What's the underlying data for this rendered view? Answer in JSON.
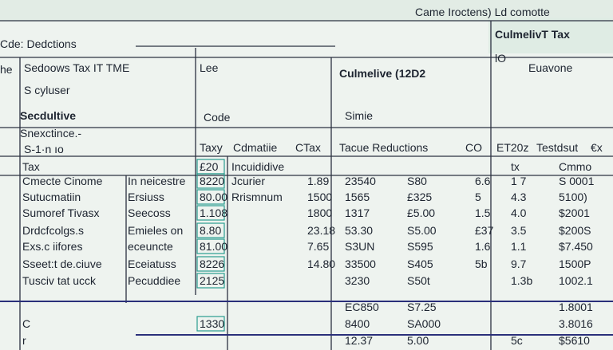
{
  "header": {
    "top_note": "Came Iroctens) Ld comotte",
    "title": "Cde: Dedctions",
    "right_title": "CulmelivT Tax"
  },
  "panels": {
    "left": [
      "he",
      "Sedoows Tax IT TME",
      "S cyluser",
      "Secdultive",
      "Snexctince.-",
      "S-1·n ıo"
    ],
    "middle": [
      "Lee",
      "Code"
    ],
    "center": [
      "Culmelive (12D2",
      "Simie"
    ],
    "right": [
      "lO",
      "Euavone"
    ]
  },
  "table": {
    "headers": [
      "Taxy",
      "Cdmatiie",
      "CTax",
      "Tacue Reductions",
      "CO",
      "ET20z",
      "Testdsut",
      "€x"
    ],
    "columns": [
      {
        "cells": [
          "Tax",
          "Cmecte Cinome",
          "Sutucmatiin",
          "Sumoref Tivasx",
          "Drdcfcolgs.s",
          "Exs.c iifores",
          "Sseet:t de.ciuve",
          "Tusciv tat ucck",
          null,
          "C",
          "r"
        ]
      },
      {
        "cells": [
          null,
          "In neicestre",
          "Ersiuss",
          "Seecoss",
          "Emieles on",
          "eceuncte",
          "Eceiatuss",
          "Pecuddiee",
          null,
          null,
          null
        ]
      },
      {
        "cells": [
          "£20",
          "8220",
          "80.00",
          "1.108",
          "8.80",
          "81.00",
          "8226",
          "2125",
          null,
          "1330",
          null
        ]
      },
      {
        "cells": [
          "Incuididive",
          "Jcurier",
          "Rrismnum",
          null,
          null,
          null,
          null,
          null,
          null,
          null,
          null
        ]
      },
      {
        "cells": [
          null,
          "1.89",
          "1500",
          "1800",
          "23.18",
          "7.65",
          "14.80",
          null,
          null,
          null,
          null
        ]
      },
      {
        "cells": [
          null,
          "23540",
          "1565",
          "1317",
          "53.30",
          "S3UN",
          "33500",
          "3230",
          "EC850",
          "8400",
          "12.37"
        ]
      },
      {
        "cells": [
          null,
          "S80",
          "£325",
          "£5.00",
          "S5.00",
          "S595",
          "S405",
          "S50t",
          "S7.25",
          "SA000",
          "5.00"
        ]
      },
      {
        "cells": [
          null,
          "6.6",
          "5",
          "1.5",
          "£37",
          "1.6",
          "5b",
          null,
          null,
          null,
          null
        ]
      },
      {
        "cells": [
          "tx",
          "1 7",
          "4.3",
          "4.0",
          "3.5",
          "1.1",
          "9.7",
          "1.3b",
          null,
          null,
          "5c"
        ]
      },
      {
        "cells": [
          "Cmmo",
          "S 0001",
          "5100)",
          "$2001",
          "$200S",
          "$7.450",
          "1500P",
          "1002.1",
          "1.8001",
          "3.8016",
          "$5610"
        ]
      }
    ]
  }
}
